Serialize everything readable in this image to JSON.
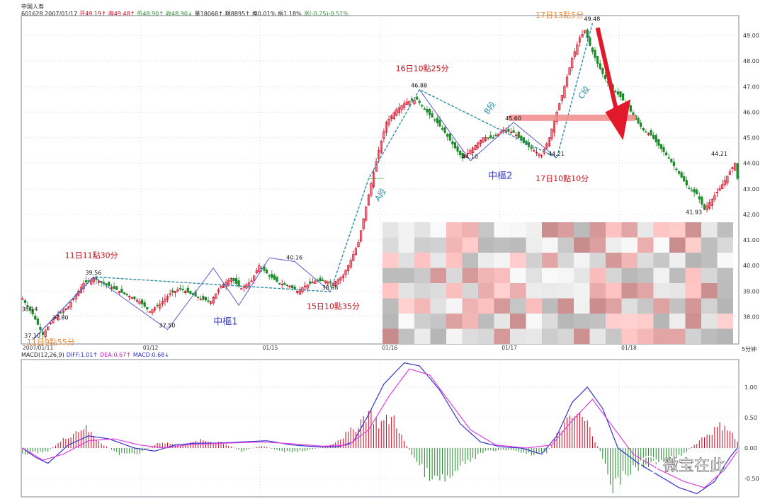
{
  "header": {
    "title": "中国人寿",
    "quote_parts": [
      {
        "t": "601628 2007/01/17",
        "c": "#222222"
      },
      {
        "t": "开49.19↑",
        "c": "#d0021b"
      },
      {
        "t": "高49.48↑",
        "c": "#d0021b"
      },
      {
        "t": "低48.90↑",
        "c": "#2a8a2a"
      },
      {
        "t": "收48.90↓",
        "c": "#2a8a2a"
      },
      {
        "t": "量18068↑",
        "c": "#222222"
      },
      {
        "t": "额8895↑",
        "c": "#222222"
      },
      {
        "t": "换0.01%",
        "c": "#222222"
      },
      {
        "t": "振1.18%",
        "c": "#222222"
      },
      {
        "t": "涨(-0.25)-0.51%",
        "c": "#2a8a2a"
      }
    ]
  },
  "price_axis_label": "5分钟",
  "macd_header": {
    "parts": [
      {
        "t": "MACD(12,26,9)",
        "c": "#222222"
      },
      {
        "t": "DIFF:1.01↑",
        "c": "#2b2bd0"
      },
      {
        "t": "DEA:0.67↑",
        "c": "#c020c0"
      },
      {
        "t": "MACD:0.68↓",
        "c": "#2b2bd0"
      }
    ]
  },
  "watermark": "微宝在此",
  "colors": {
    "up": "#d0021b",
    "down": "#1f8a2a",
    "grid": "#c8d0dc",
    "trend": "#2e8ca8",
    "zigzag": "#5a5ad0",
    "diff": "#3333cc",
    "dea": "#e040e0",
    "annot": "#c0121b",
    "annot_orange": "#f08a3a",
    "zs": "#3a3ad0"
  },
  "chart_data": [
    {
      "type": "candlestick",
      "title": "中国人寿 601628 5分钟",
      "y_ticks": [
        38.0,
        39.0,
        40.0,
        41.0,
        42.0,
        43.0,
        44.0,
        45.0,
        46.0,
        47.0,
        48.0,
        49.0
      ],
      "x_ticks": [
        {
          "label": "2007/01/11",
          "i": 0
        },
        {
          "label": "01/12",
          "i": 47
        },
        {
          "label": "01/15",
          "i": 94
        },
        {
          "label": "01/16",
          "i": 141
        },
        {
          "label": "01/17",
          "i": 188
        },
        {
          "label": "01/18",
          "i": 235
        }
      ],
      "n_bars": 282,
      "closes": [
        {
          "i": 0,
          "v": 38.7
        },
        {
          "i": 4,
          "v": 38.1
        },
        {
          "i": 8,
          "v": 37.3
        },
        {
          "i": 12,
          "v": 37.9
        },
        {
          "i": 18,
          "v": 38.4
        },
        {
          "i": 24,
          "v": 39.3
        },
        {
          "i": 28,
          "v": 39.5
        },
        {
          "i": 34,
          "v": 39.2
        },
        {
          "i": 40,
          "v": 38.9
        },
        {
          "i": 46,
          "v": 38.6
        },
        {
          "i": 50,
          "v": 38.2
        },
        {
          "i": 54,
          "v": 38.5
        },
        {
          "i": 58,
          "v": 38.9
        },
        {
          "i": 62,
          "v": 39.1
        },
        {
          "i": 66,
          "v": 38.9
        },
        {
          "i": 70,
          "v": 38.7
        },
        {
          "i": 74,
          "v": 38.6
        },
        {
          "i": 78,
          "v": 39.2
        },
        {
          "i": 82,
          "v": 39.5
        },
        {
          "i": 86,
          "v": 39.1
        },
        {
          "i": 90,
          "v": 39.4
        },
        {
          "i": 93,
          "v": 40.0
        },
        {
          "i": 97,
          "v": 39.6
        },
        {
          "i": 101,
          "v": 39.3
        },
        {
          "i": 105,
          "v": 39.2
        },
        {
          "i": 108,
          "v": 39.0
        },
        {
          "i": 111,
          "v": 39.2
        },
        {
          "i": 115,
          "v": 39.4
        },
        {
          "i": 119,
          "v": 39.4
        },
        {
          "i": 122,
          "v": 39.3
        },
        {
          "i": 126,
          "v": 39.6
        },
        {
          "i": 129,
          "v": 40.2
        },
        {
          "i": 132,
          "v": 40.9
        },
        {
          "i": 135,
          "v": 42.3
        },
        {
          "i": 137,
          "v": 43.2
        },
        {
          "i": 140,
          "v": 44.5
        },
        {
          "i": 143,
          "v": 45.6
        },
        {
          "i": 147,
          "v": 46.1
        },
        {
          "i": 151,
          "v": 46.4
        },
        {
          "i": 155,
          "v": 46.5
        },
        {
          "i": 158,
          "v": 46.1
        },
        {
          "i": 162,
          "v": 45.7
        },
        {
          "i": 166,
          "v": 45.2
        },
        {
          "i": 170,
          "v": 44.6
        },
        {
          "i": 173,
          "v": 44.2
        },
        {
          "i": 177,
          "v": 44.6
        },
        {
          "i": 181,
          "v": 45.0
        },
        {
          "i": 185,
          "v": 45.0
        },
        {
          "i": 189,
          "v": 45.3
        },
        {
          "i": 193,
          "v": 45.2
        },
        {
          "i": 197,
          "v": 44.8
        },
        {
          "i": 201,
          "v": 44.5
        },
        {
          "i": 204,
          "v": 44.3
        },
        {
          "i": 207,
          "v": 45.0
        },
        {
          "i": 210,
          "v": 46.0
        },
        {
          "i": 213,
          "v": 47.0
        },
        {
          "i": 216,
          "v": 48.1
        },
        {
          "i": 219,
          "v": 48.9
        },
        {
          "i": 221,
          "v": 49.2
        },
        {
          "i": 223,
          "v": 48.6
        },
        {
          "i": 226,
          "v": 47.9
        },
        {
          "i": 229,
          "v": 47.3
        },
        {
          "i": 232,
          "v": 46.9
        },
        {
          "i": 235,
          "v": 46.6
        },
        {
          "i": 238,
          "v": 46.2
        },
        {
          "i": 241,
          "v": 45.7
        },
        {
          "i": 244,
          "v": 45.3
        },
        {
          "i": 247,
          "v": 45.1
        },
        {
          "i": 250,
          "v": 44.7
        },
        {
          "i": 254,
          "v": 44.2
        },
        {
          "i": 258,
          "v": 43.6
        },
        {
          "i": 262,
          "v": 43.0
        },
        {
          "i": 265,
          "v": 42.8
        },
        {
          "i": 268,
          "v": 42.2
        },
        {
          "i": 271,
          "v": 42.6
        },
        {
          "i": 274,
          "v": 43.0
        },
        {
          "i": 277,
          "v": 43.5
        },
        {
          "i": 280,
          "v": 44.0
        },
        {
          "i": 281,
          "v": 43.4
        }
      ],
      "price_labels": [
        {
          "t": "38.14",
          "i": 3,
          "v": 38.14
        },
        {
          "t": "37.80",
          "i": 15,
          "v": 37.8
        },
        {
          "t": "37.10",
          "i": 4,
          "v": 37.1
        },
        {
          "t": "39.56",
          "i": 28,
          "v": 39.56
        },
        {
          "t": "37.50",
          "i": 57,
          "v": 37.5
        },
        {
          "t": "40.16",
          "i": 107,
          "v": 40.16
        },
        {
          "t": "38.98",
          "i": 121,
          "v": 38.98
        },
        {
          "t": "46.88",
          "i": 156,
          "v": 46.88
        },
        {
          "t": "44.10",
          "i": 176,
          "v": 44.1
        },
        {
          "t": "45.60",
          "i": 193,
          "v": 45.6
        },
        {
          "t": "44.21",
          "i": 210,
          "v": 44.21
        },
        {
          "t": "49.48",
          "i": 224,
          "v": 49.48
        },
        {
          "t": "41.93",
          "i": 264,
          "v": 41.93
        },
        {
          "t": "44.21",
          "i": 274,
          "v": 44.21
        }
      ],
      "annotations": [
        {
          "t": "11日11點30分",
          "i": 25,
          "v": 40.3,
          "c": "annot"
        },
        {
          "t": "11日9點55分",
          "i": 10,
          "v": 36.9,
          "c": "annot_orange"
        },
        {
          "t": "15日10點35分",
          "i": 120,
          "v": 38.3,
          "c": "annot"
        },
        {
          "t": "16日10點25分",
          "i": 155,
          "v": 47.6,
          "c": "annot"
        },
        {
          "t": "17日10點10分",
          "i": 210,
          "v": 43.3,
          "c": "annot"
        },
        {
          "t": "17日13點5分",
          "i": 210,
          "v": 49.7,
          "c": "annot_orange"
        }
      ],
      "segment_labels": [
        {
          "t": "A段",
          "i": 140,
          "v": 42.5
        },
        {
          "t": "B段",
          "i": 183,
          "v": 45.9
        },
        {
          "t": "C段",
          "i": 220,
          "v": 46.5
        }
      ],
      "pivot_labels": [
        {
          "t": "中樞1",
          "i": 75,
          "v": 37.7
        },
        {
          "t": "中樞2",
          "i": 183,
          "v": 43.4
        }
      ]
    },
    {
      "type": "bar+line",
      "title": "MACD(12,26,9)",
      "y_ticks": [
        -0.5,
        0.0,
        0.5,
        1.0
      ],
      "series": [
        {
          "name": "DIFF",
          "values": [
            {
              "i": 0,
              "v": 0.0
            },
            {
              "i": 5,
              "v": -0.15
            },
            {
              "i": 10,
              "v": -0.25
            },
            {
              "i": 18,
              "v": 0.05
            },
            {
              "i": 26,
              "v": 0.2
            },
            {
              "i": 34,
              "v": 0.15
            },
            {
              "i": 44,
              "v": 0.0
            },
            {
              "i": 52,
              "v": -0.05
            },
            {
              "i": 60,
              "v": 0.05
            },
            {
              "i": 68,
              "v": 0.08
            },
            {
              "i": 76,
              "v": 0.08
            },
            {
              "i": 86,
              "v": 0.1
            },
            {
              "i": 96,
              "v": 0.12
            },
            {
              "i": 106,
              "v": 0.05
            },
            {
              "i": 116,
              "v": 0.02
            },
            {
              "i": 124,
              "v": 0.02
            },
            {
              "i": 130,
              "v": 0.1
            },
            {
              "i": 136,
              "v": 0.55
            },
            {
              "i": 142,
              "v": 1.05
            },
            {
              "i": 150,
              "v": 1.4
            },
            {
              "i": 156,
              "v": 1.35
            },
            {
              "i": 164,
              "v": 0.95
            },
            {
              "i": 172,
              "v": 0.4
            },
            {
              "i": 180,
              "v": 0.1
            },
            {
              "i": 188,
              "v": 0.02
            },
            {
              "i": 196,
              "v": 0.0
            },
            {
              "i": 204,
              "v": -0.1
            },
            {
              "i": 210,
              "v": 0.2
            },
            {
              "i": 216,
              "v": 0.75
            },
            {
              "i": 222,
              "v": 1.0
            },
            {
              "i": 228,
              "v": 0.65
            },
            {
              "i": 234,
              "v": 0.0
            },
            {
              "i": 242,
              "v": -0.25
            },
            {
              "i": 250,
              "v": -0.45
            },
            {
              "i": 258,
              "v": -0.65
            },
            {
              "i": 265,
              "v": -0.75
            },
            {
              "i": 272,
              "v": -0.55
            },
            {
              "i": 278,
              "v": -0.15
            },
            {
              "i": 281,
              "v": 0.0
            }
          ]
        },
        {
          "name": "DEA",
          "values": [
            {
              "i": 0,
              "v": 0.0
            },
            {
              "i": 8,
              "v": -0.2
            },
            {
              "i": 16,
              "v": -0.1
            },
            {
              "i": 26,
              "v": 0.12
            },
            {
              "i": 36,
              "v": 0.15
            },
            {
              "i": 46,
              "v": 0.05
            },
            {
              "i": 56,
              "v": 0.0
            },
            {
              "i": 66,
              "v": 0.06
            },
            {
              "i": 80,
              "v": 0.08
            },
            {
              "i": 94,
              "v": 0.1
            },
            {
              "i": 106,
              "v": 0.07
            },
            {
              "i": 118,
              "v": 0.03
            },
            {
              "i": 128,
              "v": 0.05
            },
            {
              "i": 136,
              "v": 0.3
            },
            {
              "i": 144,
              "v": 0.85
            },
            {
              "i": 152,
              "v": 1.3
            },
            {
              "i": 160,
              "v": 1.2
            },
            {
              "i": 168,
              "v": 0.75
            },
            {
              "i": 176,
              "v": 0.3
            },
            {
              "i": 186,
              "v": 0.05
            },
            {
              "i": 198,
              "v": 0.0
            },
            {
              "i": 208,
              "v": 0.05
            },
            {
              "i": 216,
              "v": 0.45
            },
            {
              "i": 224,
              "v": 0.8
            },
            {
              "i": 232,
              "v": 0.35
            },
            {
              "i": 240,
              "v": -0.1
            },
            {
              "i": 250,
              "v": -0.35
            },
            {
              "i": 260,
              "v": -0.55
            },
            {
              "i": 268,
              "v": -0.65
            },
            {
              "i": 276,
              "v": -0.35
            },
            {
              "i": 281,
              "v": -0.05
            }
          ]
        }
      ],
      "histogram": [
        {
          "i": 0,
          "v": -0.1
        },
        {
          "i": 10,
          "v": -0.05
        },
        {
          "i": 18,
          "v": 0.2
        },
        {
          "i": 24,
          "v": 0.35
        },
        {
          "i": 32,
          "v": 0.05
        },
        {
          "i": 38,
          "v": -0.1
        },
        {
          "i": 46,
          "v": -0.08
        },
        {
          "i": 54,
          "v": 0.1
        },
        {
          "i": 62,
          "v": 0.05
        },
        {
          "i": 70,
          "v": 0.12
        },
        {
          "i": 78,
          "v": 0.1
        },
        {
          "i": 86,
          "v": -0.05
        },
        {
          "i": 94,
          "v": 0.04
        },
        {
          "i": 102,
          "v": -0.06
        },
        {
          "i": 110,
          "v": -0.05
        },
        {
          "i": 120,
          "v": 0.03
        },
        {
          "i": 130,
          "v": 0.3
        },
        {
          "i": 136,
          "v": 0.6
        },
        {
          "i": 140,
          "v": 0.4
        },
        {
          "i": 146,
          "v": 0.5
        },
        {
          "i": 150,
          "v": 0.1
        },
        {
          "i": 156,
          "v": -0.3
        },
        {
          "i": 162,
          "v": -0.55
        },
        {
          "i": 168,
          "v": -0.5
        },
        {
          "i": 174,
          "v": -0.25
        },
        {
          "i": 182,
          "v": -0.05
        },
        {
          "i": 192,
          "v": -0.03
        },
        {
          "i": 200,
          "v": -0.1
        },
        {
          "i": 206,
          "v": -0.08
        },
        {
          "i": 212,
          "v": 0.35
        },
        {
          "i": 218,
          "v": 0.55
        },
        {
          "i": 222,
          "v": 0.4
        },
        {
          "i": 228,
          "v": -0.15
        },
        {
          "i": 232,
          "v": -0.65
        },
        {
          "i": 238,
          "v": -0.4
        },
        {
          "i": 244,
          "v": -0.3
        },
        {
          "i": 252,
          "v": -0.2
        },
        {
          "i": 260,
          "v": -0.1
        },
        {
          "i": 268,
          "v": 0.2
        },
        {
          "i": 276,
          "v": 0.4
        },
        {
          "i": 281,
          "v": 0.1
        }
      ]
    }
  ]
}
